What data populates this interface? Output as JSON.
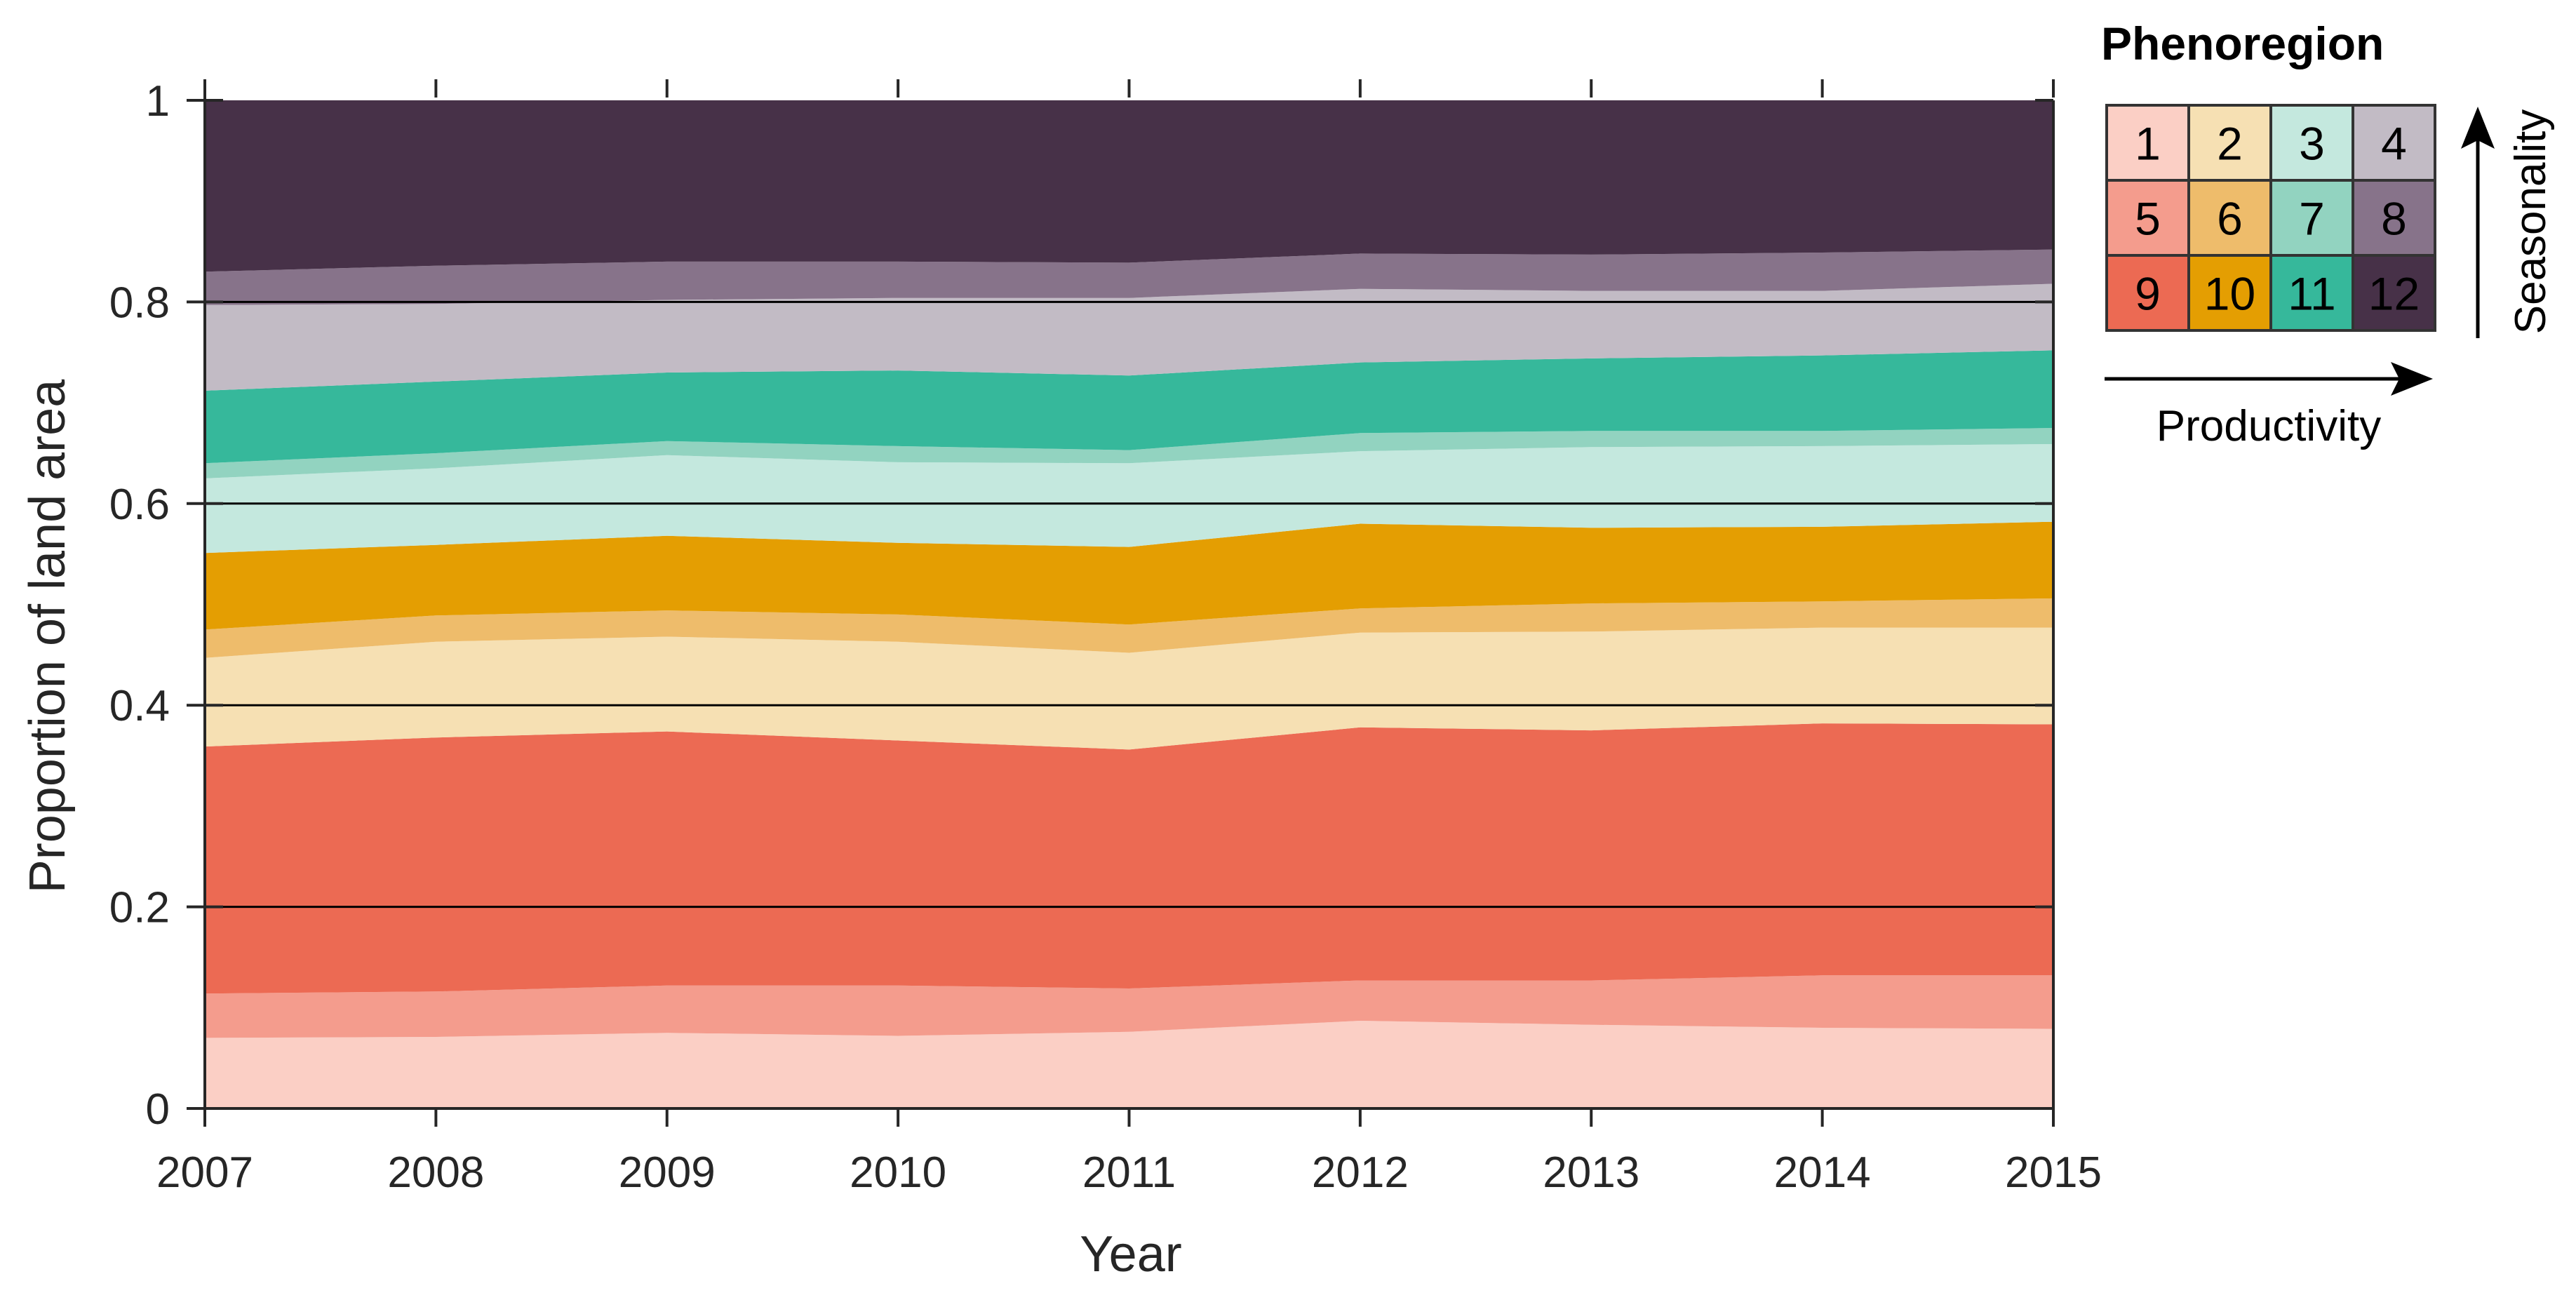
{
  "chart_data": {
    "type": "area",
    "stacked": true,
    "xlabel": "Year",
    "ylabel": "Proportion of land area",
    "xlim": [
      2007,
      2015
    ],
    "ylim": [
      0,
      1
    ],
    "x": [
      2007,
      2008,
      2009,
      2010,
      2011,
      2012,
      2013,
      2014,
      2015
    ],
    "x_tick_labels": [
      "2007",
      "2008",
      "2009",
      "2010",
      "2011",
      "2012",
      "2013",
      "2014",
      "2015"
    ],
    "y_ticks": [
      0,
      0.2,
      0.4,
      0.6,
      0.8,
      1
    ],
    "y_tick_labels": [
      "0",
      "0.2",
      "0.4",
      "0.6",
      "0.8",
      "1"
    ],
    "gridlines_y": [
      0.2,
      0.4,
      0.6,
      0.8
    ],
    "series": [
      {
        "name": "1",
        "color": "#FBCFC5",
        "values": [
          0.07,
          0.071,
          0.075,
          0.072,
          0.076,
          0.087,
          0.083,
          0.08,
          0.079
        ]
      },
      {
        "name": "5",
        "color": "#F49C8D",
        "values": [
          0.044,
          0.045,
          0.047,
          0.05,
          0.043,
          0.04,
          0.044,
          0.052,
          0.053
        ]
      },
      {
        "name": "9",
        "color": "#EC6A53",
        "values": [
          0.245,
          0.252,
          0.252,
          0.243,
          0.237,
          0.251,
          0.248,
          0.25,
          0.249
        ]
      },
      {
        "name": "2",
        "color": "#F6E0B3",
        "values": [
          0.088,
          0.095,
          0.094,
          0.098,
          0.096,
          0.094,
          0.098,
          0.095,
          0.096
        ]
      },
      {
        "name": "6",
        "color": "#EEBC6B",
        "values": [
          0.028,
          0.026,
          0.026,
          0.027,
          0.028,
          0.024,
          0.028,
          0.026,
          0.029
        ]
      },
      {
        "name": "10",
        "color": "#E49E02",
        "values": [
          0.076,
          0.07,
          0.074,
          0.071,
          0.077,
          0.084,
          0.075,
          0.074,
          0.076
        ]
      },
      {
        "name": "3",
        "color": "#C4E8DE",
        "values": [
          0.074,
          0.076,
          0.08,
          0.08,
          0.083,
          0.072,
          0.08,
          0.08,
          0.077
        ]
      },
      {
        "name": "7",
        "color": "#92D3C0",
        "values": [
          0.015,
          0.015,
          0.014,
          0.016,
          0.013,
          0.018,
          0.016,
          0.015,
          0.016
        ]
      },
      {
        "name": "11",
        "color": "#36B89B",
        "values": [
          0.072,
          0.071,
          0.068,
          0.075,
          0.074,
          0.07,
          0.072,
          0.075,
          0.077
        ]
      },
      {
        "name": "4",
        "color": "#C2BBC5",
        "values": [
          0.085,
          0.077,
          0.072,
          0.072,
          0.077,
          0.073,
          0.067,
          0.064,
          0.066
        ]
      },
      {
        "name": "8",
        "color": "#87738A",
        "values": [
          0.033,
          0.038,
          0.038,
          0.036,
          0.035,
          0.035,
          0.036,
          0.038,
          0.034
        ]
      },
      {
        "name": "12",
        "color": "#473148",
        "values": [
          0.17,
          0.164,
          0.16,
          0.16,
          0.161,
          0.152,
          0.153,
          0.151,
          0.148
        ]
      }
    ]
  },
  "legend": {
    "title": "Phenoregion",
    "x_axis_label": "Productivity",
    "y_axis_label": "Seasonality",
    "grid": [
      [
        {
          "label": "1",
          "color": "#FBCFC5"
        },
        {
          "label": "2",
          "color": "#F6E0B3"
        },
        {
          "label": "3",
          "color": "#C4E8DE"
        },
        {
          "label": "4",
          "color": "#C2BBC5"
        }
      ],
      [
        {
          "label": "5",
          "color": "#F49C8D"
        },
        {
          "label": "6",
          "color": "#EEBC6B"
        },
        {
          "label": "7",
          "color": "#92D3C0"
        },
        {
          "label": "8",
          "color": "#87738A"
        }
      ],
      [
        {
          "label": "9",
          "color": "#EC6A53"
        },
        {
          "label": "10",
          "color": "#E49E02"
        },
        {
          "label": "11",
          "color": "#36B89B"
        },
        {
          "label": "12",
          "color": "#473148"
        }
      ]
    ]
  },
  "colors": {
    "axis": "#262626",
    "gridline": "#000000"
  }
}
